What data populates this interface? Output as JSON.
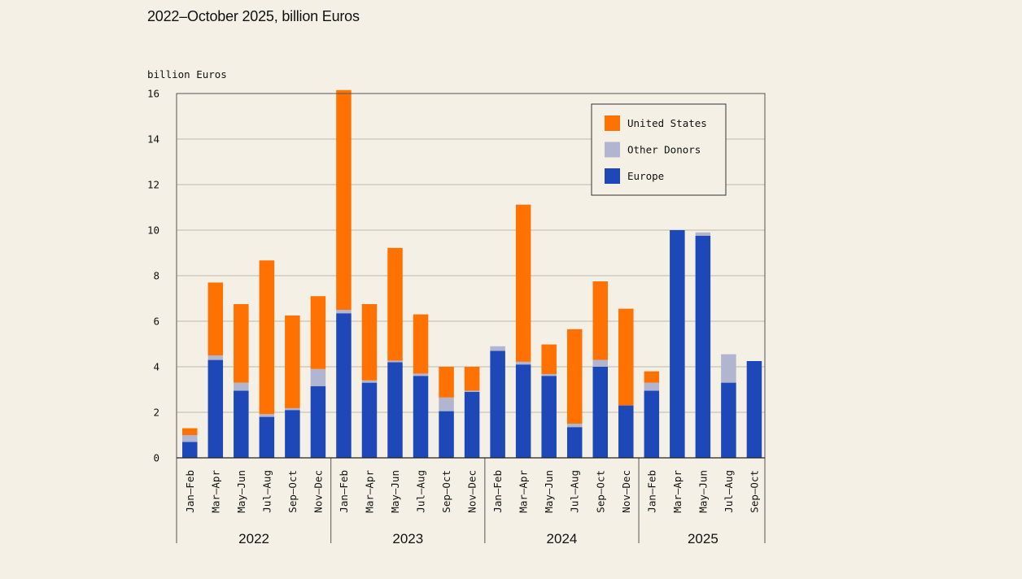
{
  "header": {
    "subtitle": "2022–October 2025, billion Euros"
  },
  "colors": {
    "united_states": "#ff7100",
    "other_donors": "#b2b5cf",
    "europe": "#1e48b8",
    "grid": "#bdb7a9",
    "axis": "#555555"
  },
  "chart_data": {
    "type": "bar",
    "stacked": true,
    "title": "",
    "ylabel": "billion Euros",
    "xlabel": "",
    "ylim": [
      0,
      16
    ],
    "yticks": [
      0,
      2,
      4,
      6,
      8,
      10,
      12,
      14,
      16
    ],
    "grid": true,
    "legend_position": "top-right",
    "legend": [
      "United States",
      "Other Donors",
      "Europe"
    ],
    "years": [
      {
        "label": "2022",
        "count": 6
      },
      {
        "label": "2023",
        "count": 6
      },
      {
        "label": "2024",
        "count": 6
      },
      {
        "label": "2025",
        "count": 5
      }
    ],
    "categories": [
      "Jan–Feb",
      "Mar–Apr",
      "May–Jun",
      "Jul–Aug",
      "Sep–Oct",
      "Nov–Dec",
      "Jan–Feb",
      "Mar–Apr",
      "May–Jun",
      "Jul–Aug",
      "Sep–Oct",
      "Nov–Dec",
      "Jan–Feb",
      "Mar–Apr",
      "May–Jun",
      "Jul–Aug",
      "Sep–Oct",
      "Nov–Dec",
      "Jan–Feb",
      "Mar–Apr",
      "May–Jun",
      "Jul–Aug",
      "Sep–Oct"
    ],
    "series": [
      {
        "name": "Europe",
        "key": "europe",
        "values": [
          0.7,
          4.3,
          2.95,
          1.8,
          2.1,
          3.15,
          6.35,
          3.3,
          4.2,
          3.6,
          2.05,
          2.9,
          4.7,
          4.1,
          3.6,
          1.35,
          4.0,
          2.3,
          2.95,
          10.0,
          9.75,
          3.3,
          4.25
        ]
      },
      {
        "name": "Other Donors",
        "key": "other_donors",
        "values": [
          0.3,
          0.2,
          0.35,
          0.12,
          0.08,
          0.75,
          0.15,
          0.1,
          0.07,
          0.1,
          0.6,
          0.05,
          0.2,
          0.12,
          0.08,
          0.15,
          0.3,
          0.0,
          0.35,
          0.0,
          0.15,
          1.25,
          0.0
        ]
      },
      {
        "name": "United States",
        "key": "united_states",
        "values": [
          0.3,
          3.2,
          3.45,
          6.75,
          4.07,
          3.2,
          9.65,
          3.35,
          4.95,
          2.6,
          1.35,
          1.05,
          0.0,
          6.9,
          1.3,
          4.15,
          3.45,
          4.25,
          0.5,
          0.0,
          0.0,
          0.0,
          0.0
        ]
      }
    ]
  }
}
